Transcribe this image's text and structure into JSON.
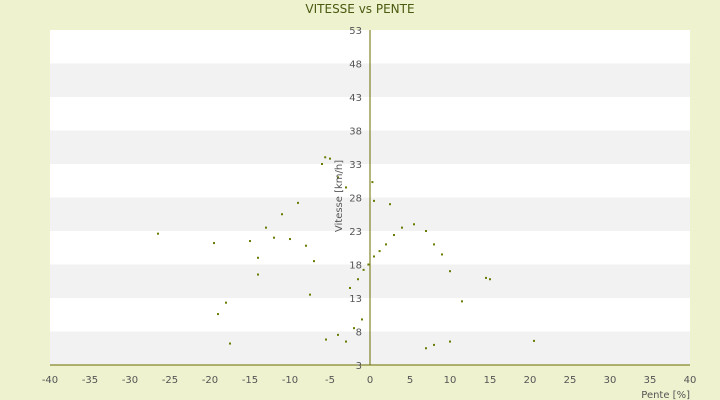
{
  "chart_data": {
    "type": "scatter",
    "title": "VITESSE vs PENTE",
    "xlabel": "Pente [%]",
    "ylabel": "Vitesse [km/h]",
    "xlim": [
      -40,
      40
    ],
    "ylim": [
      3,
      53
    ],
    "xticks": [
      -40,
      -35,
      -30,
      -25,
      -20,
      -15,
      -10,
      -5,
      0,
      5,
      10,
      15,
      20,
      25,
      30,
      35,
      40
    ],
    "yticks": [
      3,
      8,
      13,
      18,
      23,
      28,
      33,
      38,
      43,
      48,
      53
    ],
    "grid": "alternating horizontal bands",
    "colors": {
      "background": "#eef2cf",
      "band_light": "#ffffff",
      "band_dark": "#f2f2f2",
      "axis": "#6b6b00",
      "marker": "#6b7a00",
      "title": "#4a5a10"
    },
    "series": [
      {
        "points": [
          [
            -26.5,
            22.6
          ],
          [
            -19.5,
            21.2
          ],
          [
            -17.5,
            6.2
          ],
          [
            -18,
            12.3
          ],
          [
            -19,
            10.6
          ],
          [
            -15,
            21.5
          ],
          [
            -14,
            16.5
          ],
          [
            -14,
            19.0
          ],
          [
            -13,
            23.5
          ],
          [
            -12,
            22.0
          ],
          [
            -11,
            25.5
          ],
          [
            -10,
            21.8
          ],
          [
            -9,
            27.2
          ],
          [
            -8,
            20.8
          ],
          [
            -7,
            18.5
          ],
          [
            -6,
            33.0
          ],
          [
            -5.6,
            34.0
          ],
          [
            -5,
            33.8
          ],
          [
            -4,
            31.0
          ],
          [
            -3,
            29.5
          ],
          [
            -5.5,
            6.8
          ],
          [
            -4,
            7.5
          ],
          [
            -3,
            6.5
          ],
          [
            -2,
            8.5
          ],
          [
            -1,
            9.8
          ],
          [
            -2.5,
            14.5
          ],
          [
            -1.5,
            15.8
          ],
          [
            -0.8,
            17.2
          ],
          [
            -0.2,
            18.0
          ],
          [
            0.5,
            19.2
          ],
          [
            1.2,
            20.0
          ],
          [
            2.0,
            21.0
          ],
          [
            3.0,
            22.4
          ],
          [
            4.0,
            23.5
          ],
          [
            5.5,
            24.0
          ],
          [
            7.0,
            23.0
          ],
          [
            8.0,
            21.0
          ],
          [
            9.0,
            19.5
          ],
          [
            10.0,
            17.0
          ],
          [
            11.5,
            12.5
          ],
          [
            14.5,
            16.0
          ],
          [
            15.0,
            15.8
          ],
          [
            20.5,
            6.6
          ],
          [
            7.0,
            5.5
          ],
          [
            8.0,
            6.0
          ],
          [
            10.0,
            6.5
          ],
          [
            0.3,
            30.3
          ],
          [
            0.5,
            27.5
          ],
          [
            2.5,
            27.0
          ],
          [
            -7.5,
            13.5
          ]
        ]
      }
    ]
  }
}
